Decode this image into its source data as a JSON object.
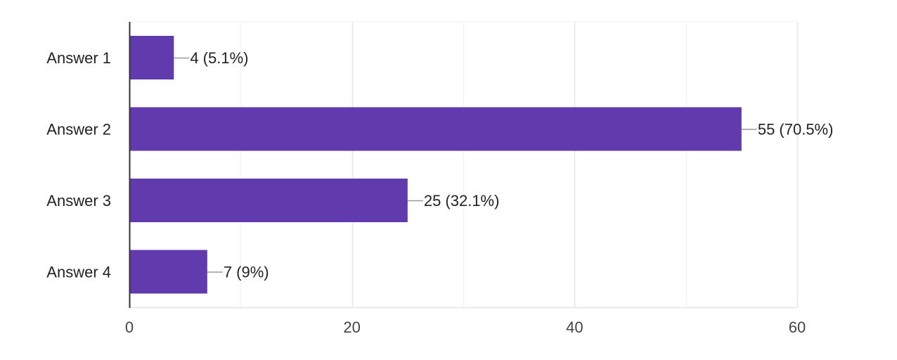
{
  "chart_data": {
    "type": "bar",
    "orientation": "horizontal",
    "categories": [
      "Answer 1",
      "Answer 2",
      "Answer 3",
      "Answer 4"
    ],
    "values": [
      4,
      55,
      25,
      7
    ],
    "data_labels": [
      "4 (5.1%)",
      "55 (70.5%)",
      "25 (32.1%)",
      "7 (9%)"
    ],
    "xlim": [
      0,
      60
    ],
    "xticks": [
      0,
      20,
      40,
      60
    ],
    "xtick_labels": [
      "0",
      "20",
      "40",
      "60"
    ],
    "minor_grid": [
      10,
      30,
      50
    ],
    "grid": true,
    "legend": false,
    "colors": {
      "bar": "#613bae",
      "grid_major": "#e6e6e6",
      "grid_minor": "#f2f2f2",
      "axis": "#333333",
      "leader": "#999999"
    }
  }
}
